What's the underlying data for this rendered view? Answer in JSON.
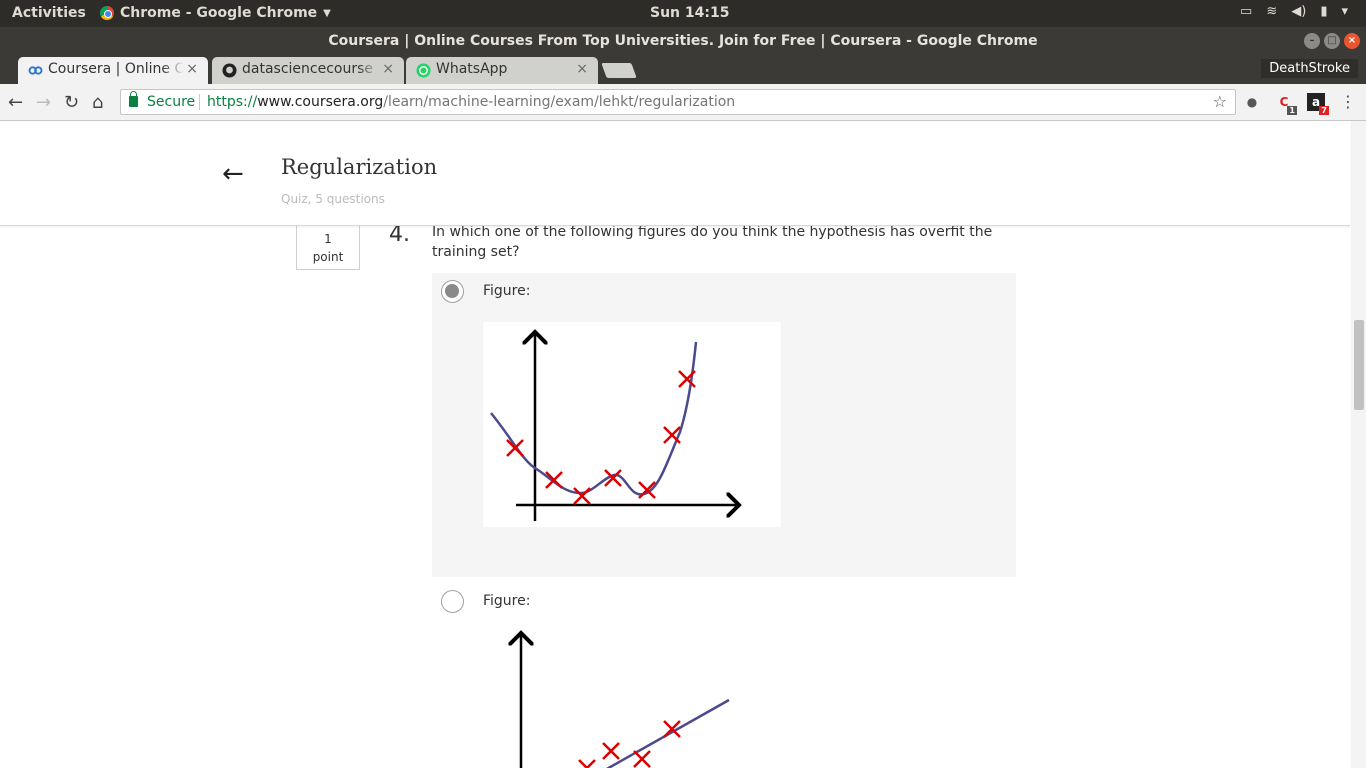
{
  "system_bar": {
    "activities": "Activities",
    "app_menu": "Chrome - Google Chrome",
    "clock": "Sun 14:15"
  },
  "window": {
    "title": "Coursera | Online Courses From Top Universities. Join for Free | Coursera - Google Chrome"
  },
  "tabs": [
    {
      "label": "Coursera | Online C",
      "close": "×"
    },
    {
      "label": "datasciencecourse",
      "close": "×"
    },
    {
      "label": "WhatsApp",
      "close": "×"
    }
  ],
  "profile": "DeathStroke",
  "address_bar": {
    "secure_label": "Secure",
    "url_scheme": "https://",
    "url_host": "www.coursera.org",
    "url_path": "/learn/machine-learning/exam/lehkt/regularization"
  },
  "extensions": {
    "badge_1": "1",
    "badge_2": "7",
    "amazon_label": "a"
  },
  "quiz": {
    "title": "Regularization",
    "subtitle": "Quiz, 5 questions"
  },
  "question": {
    "points_value": "1",
    "points_unit": "point",
    "number": "4.",
    "text": "In which one of the following figures do you think the hypothesis has overfit the training set?",
    "options": [
      {
        "label": "Figure:",
        "selected": true
      },
      {
        "label": "Figure:",
        "selected": false
      }
    ]
  },
  "colors": {
    "curve": "#4a4a8c",
    "marker": "#dd0000",
    "secure_green": "#0b8043"
  }
}
